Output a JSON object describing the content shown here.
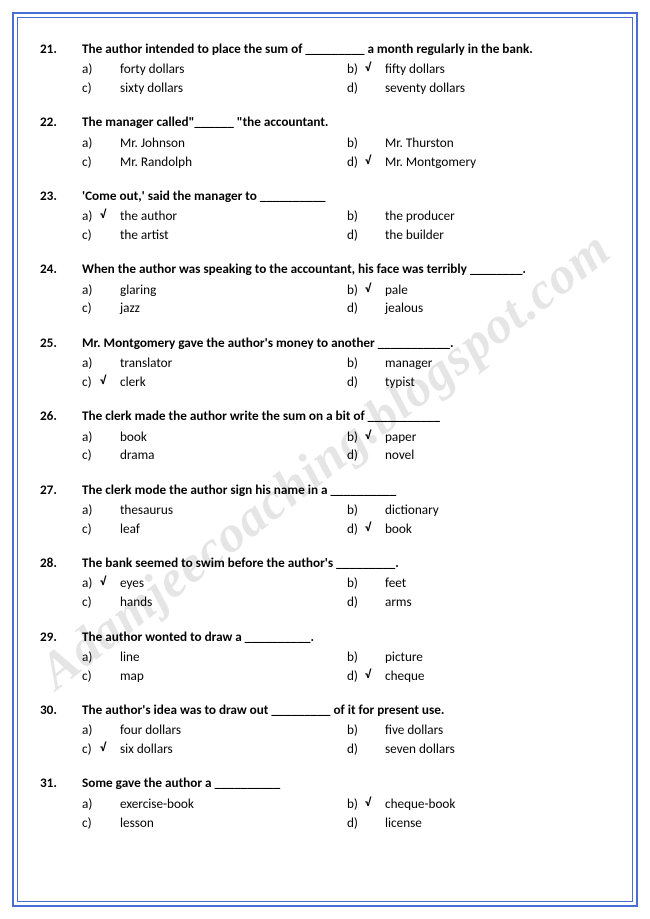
{
  "watermark": "Adamjeecoaching.blogspot.com",
  "colors": {
    "border": "#4a6fd4",
    "text": "#000000",
    "watermark": "rgba(0,0,0,0.10)"
  },
  "typography": {
    "body_fontsize": 13.2,
    "watermark_fontsize": 52
  },
  "questions": [
    {
      "num": "21.",
      "text": "The author intended to place the sum of _________ a month regularly in the bank.",
      "options": [
        {
          "l": "a)",
          "t": "forty dollars",
          "c": false
        },
        {
          "l": "b)",
          "t": "fifty dollars",
          "c": true
        },
        {
          "l": "c)",
          "t": "sixty dollars",
          "c": false
        },
        {
          "l": "d)",
          "t": "seventy dollars",
          "c": false
        }
      ]
    },
    {
      "num": "22.",
      "text": "The manager called\"______ \"the accountant.",
      "options": [
        {
          "l": "a)",
          "t": "Mr. Johnson",
          "c": false
        },
        {
          "l": "b)",
          "t": "Mr. Thurston",
          "c": false
        },
        {
          "l": "c)",
          "t": "Mr. Randolph",
          "c": false
        },
        {
          "l": "d)",
          "t": "Mr. Montgomery",
          "c": true
        }
      ]
    },
    {
      "num": "23.",
      "text": "'Come out,' said the manager to __________",
      "options": [
        {
          "l": "a)",
          "t": "the author",
          "c": true
        },
        {
          "l": "b)",
          "t": "the producer",
          "c": false
        },
        {
          "l": "c)",
          "t": "the artist",
          "c": false
        },
        {
          "l": "d)",
          "t": "the builder",
          "c": false
        }
      ]
    },
    {
      "num": "24.",
      "text": "When the author was speaking to the accountant, his face was terribly ________.",
      "options": [
        {
          "l": "a)",
          "t": "glaring",
          "c": false
        },
        {
          "l": "b)",
          "t": "pale",
          "c": true
        },
        {
          "l": "c)",
          "t": "jazz",
          "c": false
        },
        {
          "l": "d)",
          "t": "jealous",
          "c": false
        }
      ]
    },
    {
      "num": "25.",
      "text": "Mr. Montgomery gave the author's money to another ___________.",
      "options": [
        {
          "l": "a)",
          "t": "translator",
          "c": false
        },
        {
          "l": "b)",
          "t": "manager",
          "c": false
        },
        {
          "l": "c)",
          "t": "clerk",
          "c": true
        },
        {
          "l": "d)",
          "t": "typist",
          "c": false
        }
      ]
    },
    {
      "num": "26.",
      "text": "The clerk made the author write the sum on a bit of ___________",
      "options": [
        {
          "l": "a)",
          "t": "book",
          "c": false
        },
        {
          "l": "b)",
          "t": "paper",
          "c": true
        },
        {
          "l": "c)",
          "t": "drama",
          "c": false
        },
        {
          "l": "d)",
          "t": "novel",
          "c": false
        }
      ]
    },
    {
      "num": "27.",
      "text": "The clerk mode the author sign his name in a __________",
      "options": [
        {
          "l": "a)",
          "t": "thesaurus",
          "c": false
        },
        {
          "l": "b)",
          "t": "dictionary",
          "c": false
        },
        {
          "l": "c)",
          "t": "leaf",
          "c": false
        },
        {
          "l": "d)",
          "t": "book",
          "c": true
        }
      ]
    },
    {
      "num": "28.",
      "text": "The bank seemed to swim before the author's _________.",
      "options": [
        {
          "l": "a)",
          "t": "eyes",
          "c": true
        },
        {
          "l": "b)",
          "t": "feet",
          "c": false
        },
        {
          "l": "c)",
          "t": "hands",
          "c": false
        },
        {
          "l": "d)",
          "t": "arms",
          "c": false
        }
      ]
    },
    {
      "num": "29.",
      "text": "The author wonted to draw a __________.",
      "options": [
        {
          "l": "a)",
          "t": "line",
          "c": false
        },
        {
          "l": "b)",
          "t": "picture",
          "c": false
        },
        {
          "l": "c)",
          "t": "map",
          "c": false
        },
        {
          "l": "d)",
          "t": "cheque",
          "c": true
        }
      ]
    },
    {
      "num": "30.",
      "text": "The author's idea was to draw out _________ of it for present use.",
      "options": [
        {
          "l": "a)",
          "t": "four dollars",
          "c": false
        },
        {
          "l": "b)",
          "t": "five dollars",
          "c": false
        },
        {
          "l": "c)",
          "t": "six dollars",
          "c": true
        },
        {
          "l": "d)",
          "t": "seven dollars",
          "c": false
        }
      ]
    },
    {
      "num": "31.",
      "text": "Some gave the author a __________",
      "options": [
        {
          "l": "a)",
          "t": "exercise-book",
          "c": false
        },
        {
          "l": "b)",
          "t": "cheque-book",
          "c": true
        },
        {
          "l": "c)",
          "t": "lesson",
          "c": false
        },
        {
          "l": "d)",
          "t": "license",
          "c": false
        }
      ]
    }
  ]
}
